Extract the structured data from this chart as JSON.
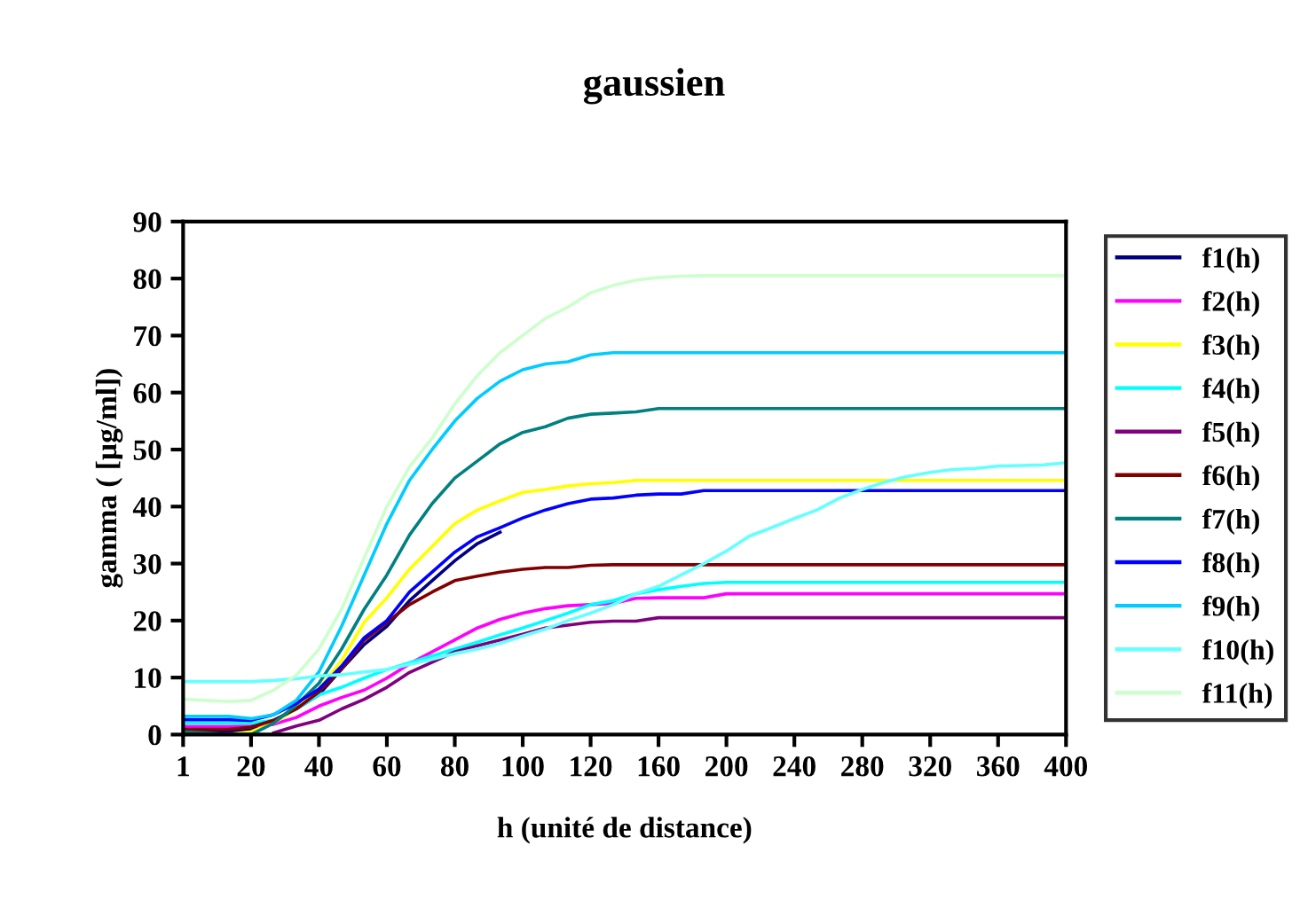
{
  "chart_data": {
    "type": "line",
    "title": "gaussien",
    "xlabel": "h (unité de distance)",
    "ylabel": "gamma ( [µg/ml])",
    "categories": [
      "1",
      null,
      null,
      "20",
      null,
      null,
      "40",
      null,
      null,
      "60",
      null,
      null,
      "80",
      null,
      null,
      "100",
      null,
      null,
      "120",
      null,
      null,
      "160",
      null,
      null,
      "200",
      null,
      null,
      "240",
      null,
      null,
      "280",
      null,
      null,
      "320",
      null,
      null,
      "360",
      null,
      null,
      "400"
    ],
    "ylim": [
      0,
      90
    ],
    "yticks": [
      0,
      10,
      20,
      30,
      40,
      50,
      60,
      70,
      80,
      90
    ],
    "grid": false,
    "legend": "right",
    "marker": "none",
    "line_style": "solid",
    "series": [
      {
        "name": "f1(h)",
        "color": "#000080",
        "values": [
          0.5,
          0.5,
          0.5,
          0.8,
          2.5,
          4.5,
          7,
          11.5,
          15.8,
          19,
          23.5,
          27,
          30.5,
          33.5,
          35.5,
          null,
          null,
          null,
          null,
          null,
          null,
          null,
          null,
          null,
          null,
          null,
          null,
          null,
          null,
          null,
          null,
          null,
          null,
          null,
          null,
          null,
          null,
          null,
          null,
          null
        ]
      },
      {
        "name": "f2(h)",
        "color": "#ff00ff",
        "values": [
          1.4,
          1.4,
          1.4,
          1.5,
          1.8,
          3,
          5,
          6.5,
          7.8,
          9.9,
          12.4,
          14.5,
          16.6,
          18.7,
          20.2,
          21.3,
          22.1,
          22.6,
          22.8,
          23,
          23.9,
          24,
          24,
          24,
          24.7,
          24.7,
          24.7,
          24.7,
          24.7,
          24.7,
          24.7,
          24.7,
          24.7,
          24.7,
          24.7,
          24.7,
          24.7,
          24.7,
          24.7,
          24.7
        ]
      },
      {
        "name": "f3(h)",
        "color": "#ffff00",
        "values": [
          0,
          0,
          0,
          0.5,
          2,
          4.5,
          8,
          13,
          19.7,
          24,
          29,
          33,
          37,
          39.4,
          41,
          42.5,
          43,
          43.6,
          44,
          44.2,
          44.6,
          44.6,
          44.6,
          44.6,
          44.6,
          44.6,
          44.6,
          44.6,
          44.6,
          44.6,
          44.6,
          44.6,
          44.6,
          44.6,
          44.6,
          44.6,
          44.6,
          44.6,
          44.6,
          44.6
        ]
      },
      {
        "name": "f4(h)",
        "color": "#00ffff",
        "values": [
          2,
          2,
          2,
          2,
          2.5,
          4.5,
          7,
          8.3,
          9.9,
          11.4,
          12.6,
          13.8,
          15,
          16.2,
          17.5,
          18.7,
          20,
          21.3,
          22.8,
          23.5,
          24.7,
          25.4,
          26,
          26.5,
          26.7,
          26.7,
          26.7,
          26.7,
          26.7,
          26.7,
          26.7,
          26.7,
          26.7,
          26.7,
          26.7,
          26.7,
          26.7,
          26.7,
          26.7,
          26.7
        ]
      },
      {
        "name": "f5(h)",
        "color": "#800080",
        "values": [
          null,
          null,
          null,
          null,
          0.3,
          1.5,
          2.5,
          4.5,
          6.2,
          8.3,
          10.9,
          12.7,
          14.5,
          15.6,
          16.6,
          17.6,
          18.7,
          19.2,
          19.7,
          19.9,
          19.9,
          20.5,
          20.5,
          20.5,
          20.5,
          20.5,
          20.5,
          20.5,
          20.5,
          20.5,
          20.5,
          20.5,
          20.5,
          20.5,
          20.5,
          20.5,
          20.5,
          20.5,
          20.5,
          20.5
        ]
      },
      {
        "name": "f6(h)",
        "color": "#800000",
        "values": [
          0.9,
          0.9,
          0.9,
          1.3,
          2.5,
          4.5,
          7.5,
          11.5,
          16.6,
          19.7,
          22.8,
          25,
          27,
          27.8,
          28.5,
          29,
          29.3,
          29.3,
          29.7,
          29.8,
          29.8,
          29.8,
          29.8,
          29.8,
          29.8,
          29.8,
          29.8,
          29.8,
          29.8,
          29.8,
          29.8,
          29.8,
          29.8,
          29.8,
          29.8,
          29.8,
          29.8,
          29.8,
          29.8,
          29.8
        ]
      },
      {
        "name": "f7(h)",
        "color": "#008080",
        "values": [
          0.5,
          0.3,
          0,
          0,
          2,
          5.2,
          9,
          15,
          22,
          28,
          35,
          40.5,
          45,
          48,
          51,
          53,
          54,
          55.5,
          56.2,
          56.4,
          56.6,
          57.2,
          57.2,
          57.2,
          57.2,
          57.2,
          57.2,
          57.2,
          57.2,
          57.2,
          57.2,
          57.2,
          57.2,
          57.2,
          57.2,
          57.2,
          57.2,
          57.2,
          57.2,
          57.2
        ]
      },
      {
        "name": "f8(h)",
        "color": "#0000ff",
        "values": [
          2.6,
          2.6,
          2.6,
          2.5,
          3.5,
          5.5,
          8,
          12,
          17,
          20,
          25,
          28.5,
          32,
          34.7,
          36.3,
          38,
          39.4,
          40.5,
          41.3,
          41.5,
          42,
          42.2,
          42.2,
          42.8,
          42.8,
          42.8,
          42.8,
          42.8,
          42.8,
          42.8,
          42.8,
          42.8,
          42.8,
          42.8,
          42.8,
          42.8,
          42.8,
          42.8,
          42.8,
          42.8
        ]
      },
      {
        "name": "f9(h)",
        "color": "#00ccff",
        "values": [
          3.2,
          3.2,
          3.2,
          2.8,
          3.5,
          6,
          11,
          19,
          28,
          37,
          44.6,
          50,
          55,
          59,
          62,
          64,
          65,
          65.4,
          66.6,
          67,
          67,
          67,
          67,
          67,
          67,
          67,
          67,
          67,
          67,
          67,
          67,
          67,
          67,
          67,
          67,
          67,
          67,
          67,
          67,
          67
        ]
      },
      {
        "name": "f10(h)",
        "color": "#66ffff",
        "values": [
          9.3,
          9.3,
          9.3,
          9.3,
          9.5,
          9.8,
          10.3,
          10.5,
          11,
          11.4,
          12.3,
          13.2,
          14.2,
          15,
          16,
          17.3,
          18.5,
          20,
          21.3,
          22.8,
          24.7,
          26,
          28,
          30,
          32.2,
          34.8,
          36.3,
          37.9,
          39.4,
          41.5,
          43,
          44.3,
          45.3,
          46,
          46.5,
          46.7,
          47.1,
          47.2,
          47.3,
          47.7
        ]
      },
      {
        "name": "f11(h)",
        "color": "#ccffcc",
        "values": [
          6.2,
          6,
          5.8,
          6,
          7.8,
          10.4,
          15,
          22,
          31,
          40,
          47,
          52,
          58,
          63,
          67,
          70,
          73,
          75,
          77.5,
          78.8,
          79.7,
          80.2,
          80.4,
          80.5,
          80.5,
          80.5,
          80.5,
          80.5,
          80.5,
          80.5,
          80.5,
          80.5,
          80.5,
          80.5,
          80.5,
          80.5,
          80.5,
          80.5,
          80.5,
          80.5
        ]
      }
    ]
  }
}
